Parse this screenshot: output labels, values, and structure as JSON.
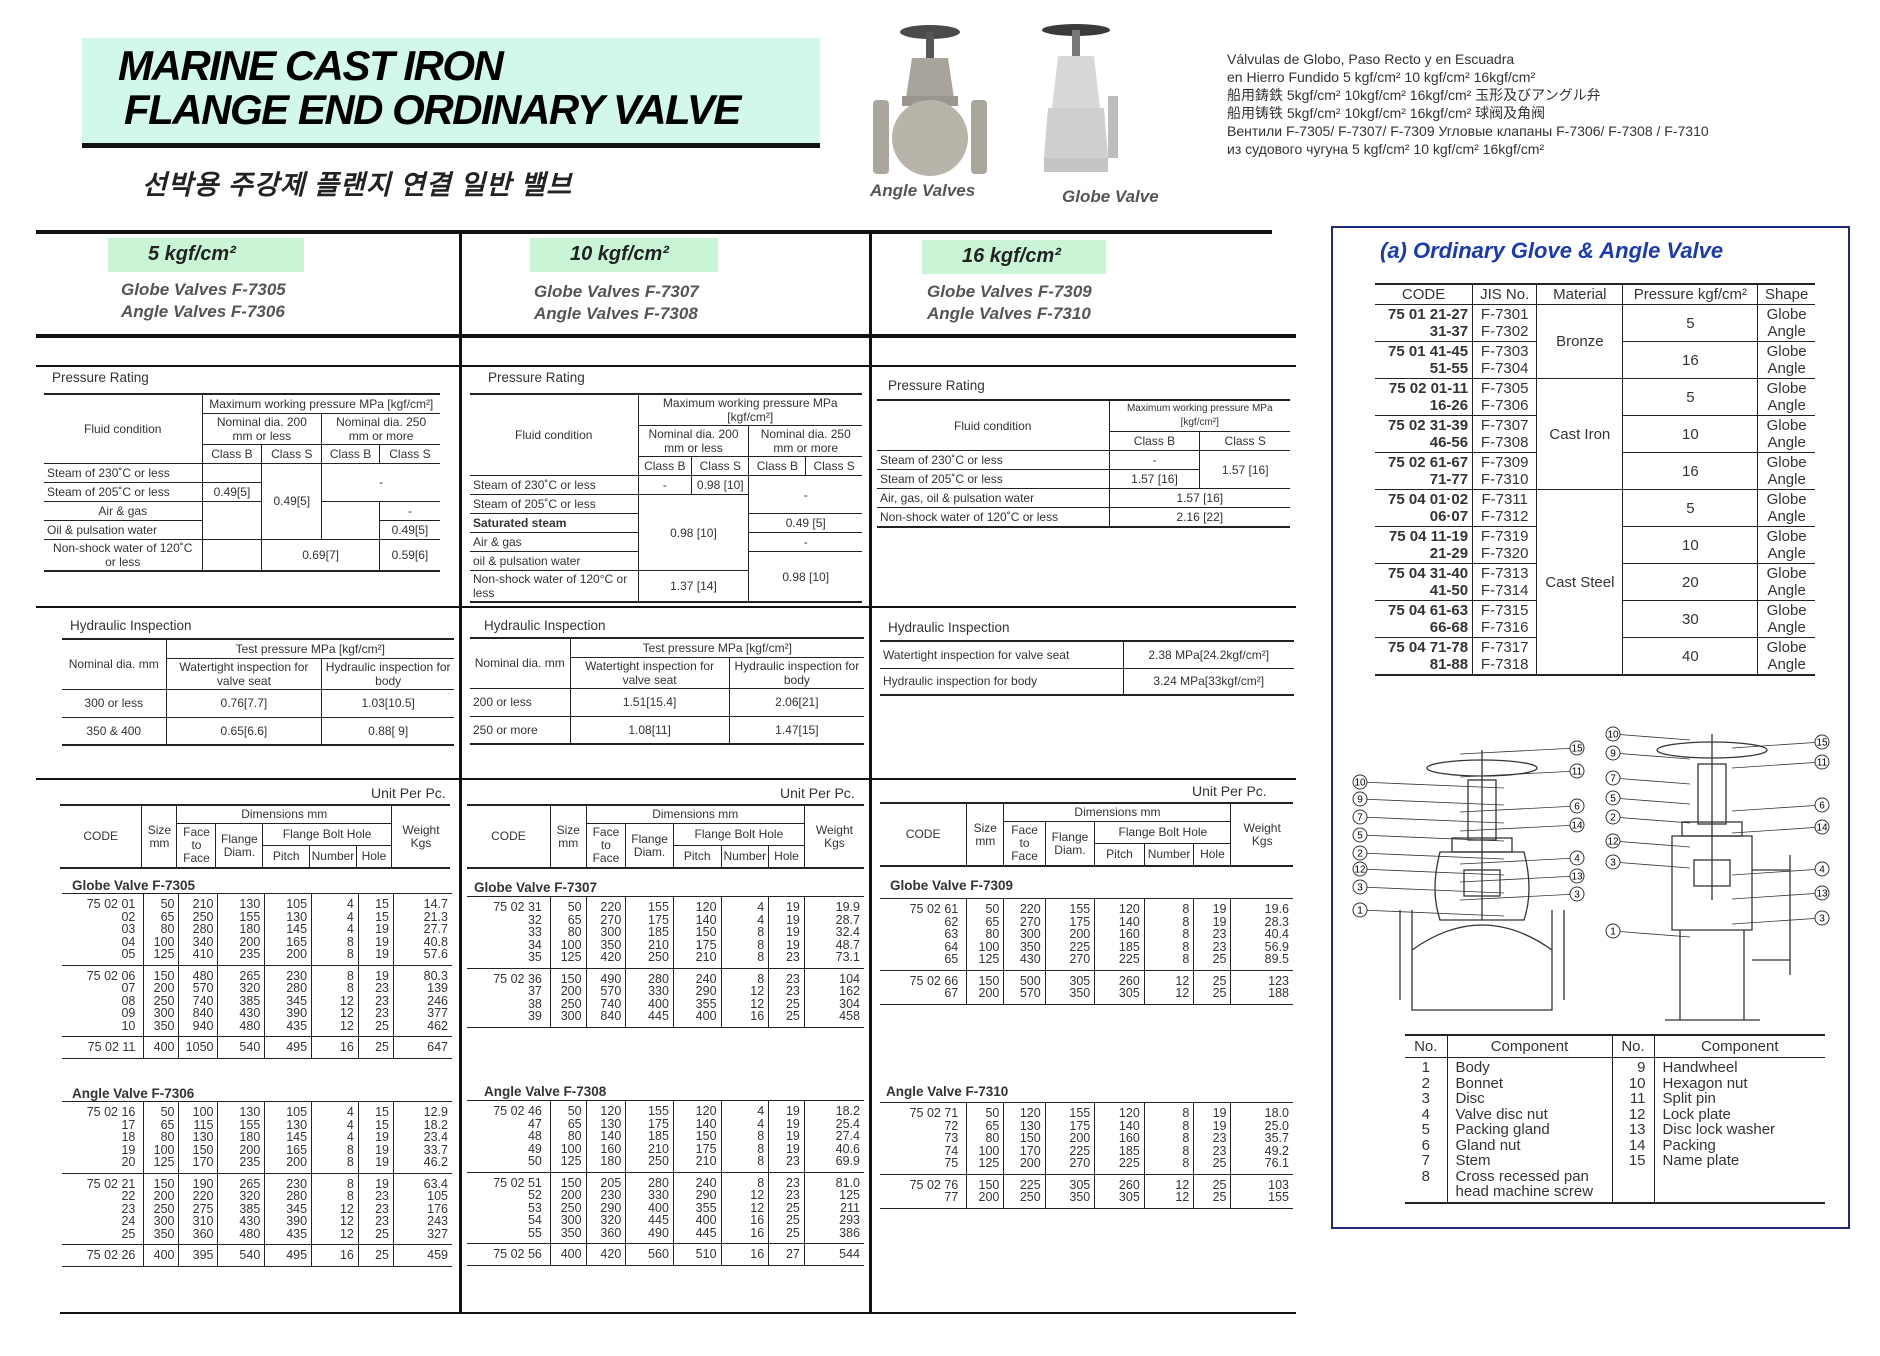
{
  "header": {
    "title_line1": "MARINE CAST IRON",
    "title_line2": "FLANGE END  ORDINARY VALVE",
    "korean": "선박용 주강제 플랜지 연결 일반 밸브",
    "photo_label_1": "Angle Valves",
    "photo_label_2": "Globe Valve",
    "multilingual": [
      "Válvulas de Globo, Paso Recto y en Escuadra",
      "en Hierro Fundido 5 kgf/cm² 10 kgf/cm² 16kgf/cm²",
      "船用鋳鉄 5kgf/cm² 10kgf/cm² 16kgf/cm² 玉形及びアングル弁",
      "船用铸铁 5kgf/cm² 10kgf/cm² 16kgf/cm² 球阀及角阀",
      "Вентили F-7305/ F-7307/ F-7309 Угловые клапаны F-7306/ F-7308 / F-7310",
      "из судового чугуна 5 kgf/cm² 10 kgf/cm² 16kgf/cm²"
    ]
  },
  "columns": [
    {
      "pressure": "5 kgf/cm²",
      "globe": "Globe Valves F-7305",
      "angle": "Angle Valves F-7306"
    },
    {
      "pressure": "10 kgf/cm²",
      "globe": "Globe Valves F-7307",
      "angle": "Angle Valves F-7308"
    },
    {
      "pressure": "16 kgf/cm²",
      "globe": "Globe Valves  F-7309",
      "angle": "Angle  Valves F-7310"
    }
  ],
  "pr": {
    "title": "Pressure Rating",
    "fluid": "Fluid condition",
    "max": "Maximum working pressure MPa [kgf/cm²]",
    "nd200": "Nominal dia. 200 mm or less",
    "nd250": "Nominal dia. 250 mm or more",
    "nd250b": "Nominal dia. 250 mm or more",
    "classb": "Class B",
    "classs": "Class S",
    "c1": {
      "r1": "Steam of 230˚C or less",
      "r2": "Steam of 205˚C or less",
      "r3": "Air & gas",
      "r4": "Oil & pulsation  water",
      "r5": "Non-shock water of 120˚C or less",
      "v_205b": "0.49[5]",
      "v_s": "0.49[5]",
      "v_big_steam": "-",
      "v_air_s": "-",
      "v_oil_s": "0.49[5]",
      "v_ns_mid": "0.69[7]",
      "v_ns_s": "0.59[6]"
    },
    "c2": {
      "r1": "Steam of 230˚C or less",
      "r2": "Steam of 205˚C or less",
      "r3": "Saturated steam",
      "r4": "Air & gas",
      "r5": "oil & pulsation water",
      "r6": "Non-shock water of 120°C or less",
      "v_230b": "-",
      "v_230s": "0.98 [10]",
      "v_big_steam": "-",
      "v_mid": "0.98 [10]",
      "v_sat": "0.49 [5]",
      "v_air": "-",
      "v_oil": "0.98 [10]",
      "v_ns": "1.37 [14]"
    },
    "c3": {
      "r1": "Steam of 230˚C or less",
      "r2": "Steam of 205˚C or less",
      "r3": "Air, gas, oil & pulsation water",
      "r4": "Non-shock water of 120˚C or less",
      "v_230b": "-",
      "v_s": "1.57 [16]",
      "v_205b": "1.57 [16]",
      "v_air": "1.57 [16]",
      "v_ns": "2.16 [22]"
    }
  },
  "hi": {
    "title": "Hydraulic Inspection",
    "nominal": "Nominal dia. mm",
    "test": "Test pressure MPa [kgf/cm²]",
    "watertight": "Watertight inspection for valve seat",
    "hydraulic": "Hydraulic inspection for body",
    "c1": [
      [
        "300 or less",
        "0.76[7.7]",
        "1.03[10.5]"
      ],
      [
        "350 & 400",
        "0.65[6.6]",
        "0.88[  9]"
      ]
    ],
    "c2": [
      [
        "200 or less",
        "1.51[15.4]",
        "2.06[21]"
      ],
      [
        "250 or more",
        "1.08[11]",
        "1.47[15]"
      ]
    ],
    "c3": [
      [
        "Watertight inspection for valve seat",
        "2.38 MPa[24.2kgf/cm²]"
      ],
      [
        "Hydraulic inspection for body",
        "3.24 MPa[33kgf/cm²]"
      ]
    ]
  },
  "dim_header": {
    "unit": "Unit Per Pc.",
    "code": "CODE",
    "size": "Size mm",
    "dimensions": "Dimensions mm",
    "ftf": "Face to Face",
    "fd": "Flange Diam.",
    "fbh": "Flange Bolt Hole",
    "pitch": "Pitch",
    "number": "Number",
    "hole": "Hole",
    "weight": "Weight Kgs"
  },
  "dims": {
    "c1g": {
      "title": "Globe Valve F-7305",
      "groups": [
        [
          [
            "75 02 01",
            "50",
            "210",
            "130",
            "105",
            "4",
            "15",
            "14.7"
          ],
          [
            "02",
            "65",
            "250",
            "155",
            "130",
            "4",
            "15",
            "21.3"
          ],
          [
            "03",
            "80",
            "280",
            "180",
            "145",
            "4",
            "19",
            "27.7"
          ],
          [
            "04",
            "100",
            "340",
            "200",
            "165",
            "8",
            "19",
            "40.8"
          ],
          [
            "05",
            "125",
            "410",
            "235",
            "200",
            "8",
            "19",
            "57.6"
          ]
        ],
        [
          [
            "75 02 06",
            "150",
            "480",
            "265",
            "230",
            "8",
            "19",
            "80.3"
          ],
          [
            "07",
            "200",
            "570",
            "320",
            "280",
            "8",
            "23",
            "139"
          ],
          [
            "08",
            "250",
            "740",
            "385",
            "345",
            "12",
            "23",
            "246"
          ],
          [
            "09",
            "300",
            "840",
            "430",
            "390",
            "12",
            "23",
            "377"
          ],
          [
            "10",
            "350",
            "940",
            "480",
            "435",
            "12",
            "25",
            "462"
          ]
        ],
        [
          [
            "75 02 11",
            "400",
            "1050",
            "540",
            "495",
            "16",
            "25",
            "647"
          ]
        ]
      ]
    },
    "c1a": {
      "title": "Angle Valve F-7306",
      "groups": [
        [
          [
            "75 02 16",
            "50",
            "100",
            "130",
            "105",
            "4",
            "15",
            "12.9"
          ],
          [
            "17",
            "65",
            "115",
            "155",
            "130",
            "4",
            "15",
            "18.2"
          ],
          [
            "18",
            "80",
            "130",
            "180",
            "145",
            "4",
            "19",
            "23.4"
          ],
          [
            "19",
            "100",
            "150",
            "200",
            "165",
            "8",
            "19",
            "33.7"
          ],
          [
            "20",
            "125",
            "170",
            "235",
            "200",
            "8",
            "19",
            "46.2"
          ]
        ],
        [
          [
            "75 02 21",
            "150",
            "190",
            "265",
            "230",
            "8",
            "19",
            "63.4"
          ],
          [
            "22",
            "200",
            "220",
            "320",
            "280",
            "8",
            "23",
            "105"
          ],
          [
            "23",
            "250",
            "275",
            "385",
            "345",
            "12",
            "23",
            "176"
          ],
          [
            "24",
            "300",
            "310",
            "430",
            "390",
            "12",
            "23",
            "243"
          ],
          [
            "25",
            "350",
            "360",
            "480",
            "435",
            "12",
            "25",
            "327"
          ]
        ],
        [
          [
            "75 02 26",
            "400",
            "395",
            "540",
            "495",
            "16",
            "25",
            "459"
          ]
        ]
      ]
    },
    "c2g": {
      "title": "Globe Valve F-7307",
      "groups": [
        [
          [
            "75 02 31",
            "50",
            "220",
            "155",
            "120",
            "4",
            "19",
            "19.9"
          ],
          [
            "32",
            "65",
            "270",
            "175",
            "140",
            "4",
            "19",
            "28.7"
          ],
          [
            "33",
            "80",
            "300",
            "185",
            "150",
            "8",
            "19",
            "32.4"
          ],
          [
            "34",
            "100",
            "350",
            "210",
            "175",
            "8",
            "19",
            "48.7"
          ],
          [
            "35",
            "125",
            "420",
            "250",
            "210",
            "8",
            "23",
            "73.1"
          ]
        ],
        [
          [
            "75 02 36",
            "150",
            "490",
            "280",
            "240",
            "8",
            "23",
            "104"
          ],
          [
            "37",
            "200",
            "570",
            "330",
            "290",
            "12",
            "23",
            "162"
          ],
          [
            "38",
            "250",
            "740",
            "400",
            "355",
            "12",
            "25",
            "304"
          ],
          [
            "39",
            "300",
            "840",
            "445",
            "400",
            "16",
            "25",
            "458"
          ]
        ]
      ]
    },
    "c2a": {
      "title": "Angle Valve F-7308",
      "groups": [
        [
          [
            "75 02 46",
            "50",
            "120",
            "155",
            "120",
            "4",
            "19",
            "18.2"
          ],
          [
            "47",
            "65",
            "130",
            "175",
            "140",
            "4",
            "19",
            "25.4"
          ],
          [
            "48",
            "80",
            "140",
            "185",
            "150",
            "8",
            "19",
            "27.4"
          ],
          [
            "49",
            "100",
            "160",
            "210",
            "175",
            "8",
            "19",
            "40.6"
          ],
          [
            "50",
            "125",
            "180",
            "250",
            "210",
            "8",
            "23",
            "69.9"
          ]
        ],
        [
          [
            "75 02 51",
            "150",
            "205",
            "280",
            "240",
            "8",
            "23",
            "81.0"
          ],
          [
            "52",
            "200",
            "230",
            "330",
            "290",
            "12",
            "23",
            "125"
          ],
          [
            "53",
            "250",
            "290",
            "400",
            "355",
            "12",
            "25",
            "211"
          ],
          [
            "54",
            "300",
            "320",
            "445",
            "400",
            "16",
            "25",
            "293"
          ],
          [
            "55",
            "350",
            "360",
            "490",
            "445",
            "16",
            "25",
            "386"
          ]
        ],
        [
          [
            "75 02 56",
            "400",
            "420",
            "560",
            "510",
            "16",
            "27",
            "544"
          ]
        ]
      ]
    },
    "c3g": {
      "title": "Globe Valve F-7309",
      "groups": [
        [
          [
            "75 02 61",
            "50",
            "220",
            "155",
            "120",
            "8",
            "19",
            "19.6"
          ],
          [
            "62",
            "65",
            "270",
            "175",
            "140",
            "8",
            "19",
            "28.3"
          ],
          [
            "63",
            "80",
            "300",
            "200",
            "160",
            "8",
            "23",
            "40.4"
          ],
          [
            "64",
            "100",
            "350",
            "225",
            "185",
            "8",
            "23",
            "56.9"
          ],
          [
            "65",
            "125",
            "430",
            "270",
            "225",
            "8",
            "25",
            "89.5"
          ]
        ],
        [
          [
            "75 02 66",
            "150",
            "500",
            "305",
            "260",
            "12",
            "25",
            "123"
          ],
          [
            "67",
            "200",
            "570",
            "350",
            "305",
            "12",
            "25",
            "188"
          ]
        ]
      ]
    },
    "c3a": {
      "title": "Angle Valve F-7310",
      "groups": [
        [
          [
            "75 02 71",
            "50",
            "120",
            "155",
            "120",
            "8",
            "19",
            "18.0"
          ],
          [
            "72",
            "65",
            "130",
            "175",
            "140",
            "8",
            "19",
            "25.0"
          ],
          [
            "73",
            "80",
            "150",
            "200",
            "160",
            "8",
            "23",
            "35.7"
          ],
          [
            "74",
            "100",
            "170",
            "225",
            "185",
            "8",
            "23",
            "49.2"
          ],
          [
            "75",
            "125",
            "200",
            "270",
            "225",
            "8",
            "25",
            "76.1"
          ]
        ],
        [
          [
            "75 02 76",
            "150",
            "225",
            "305",
            "260",
            "12",
            "25",
            "103"
          ],
          [
            "77",
            "200",
            "250",
            "350",
            "305",
            "12",
            "25",
            "155"
          ]
        ]
      ]
    }
  },
  "panel": {
    "title": "(a) Ordinary Glove & Angle Valve",
    "headers": [
      "CODE",
      "JIS No.",
      "Material",
      "Pressure kgf/cm²",
      "Shape"
    ],
    "materials": [
      {
        "name": "Bronze",
        "rows": [
          [
            "75 01 21-27",
            "31-37",
            "F-7301",
            "F-7302",
            "5"
          ],
          [
            "75 01 41-45",
            "51-55",
            "F-7303",
            "F-7304",
            "16"
          ]
        ]
      },
      {
        "name": "Cast Iron",
        "rows": [
          [
            "75 02 01-11",
            "16-26",
            "F-7305",
            "F-7306",
            "5"
          ],
          [
            "75 02 31-39",
            "46-56",
            "F-7307",
            "F-7308",
            "10"
          ],
          [
            "75 02 61-67",
            "71-77",
            "F-7309",
            "F-7310",
            "16"
          ]
        ]
      },
      {
        "name": "Cast Steel",
        "rows": [
          [
            "75 04 01·02",
            "06·07",
            "F-7311",
            "F-7312",
            "5"
          ],
          [
            "75 04 11-19",
            "21-29",
            "F-7319",
            "F-7320",
            "10"
          ],
          [
            "75 04 31-40",
            "41-50",
            "F-7313",
            "F-7314",
            "20"
          ],
          [
            "75 04 61-63",
            "66-68",
            "F-7315",
            "F-7316",
            "30"
          ],
          [
            "75 04 71-78",
            "81-88",
            "F-7317",
            "F-7318",
            "40"
          ]
        ]
      }
    ],
    "shape_globe": "Globe",
    "shape_angle": "Angle",
    "diagram_left_callouts": [
      "10",
      "9",
      "7",
      "5",
      "2",
      "12",
      "3",
      "1"
    ],
    "diagram_right_callouts": [
      "15",
      "11",
      "6",
      "14",
      "4",
      "13",
      "3"
    ],
    "diagram2_left_callouts": [
      "10",
      "9",
      "7",
      "5",
      "2",
      "12",
      "3",
      "1"
    ],
    "diagram2_right_callouts": [
      "15",
      "11",
      "6",
      "14",
      "4",
      "13",
      "3"
    ],
    "comp_headers": [
      "No.",
      "Component",
      "No.",
      "Component"
    ],
    "comp_left": [
      [
        "1",
        "Body"
      ],
      [
        "2",
        "Bonnet"
      ],
      [
        "3",
        "Disc"
      ],
      [
        "4",
        "Valve disc nut"
      ],
      [
        "5",
        "Packing gland"
      ],
      [
        "6",
        "Gland nut"
      ],
      [
        "7",
        "Stem"
      ],
      [
        "8",
        "Cross recessed pan head machine screw"
      ]
    ],
    "comp_right": [
      [
        "9",
        "Handwheel"
      ],
      [
        "10",
        "Hexagon nut"
      ],
      [
        "11",
        "Split pin"
      ],
      [
        "12",
        "Lock plate"
      ],
      [
        "13",
        "Disc lock washer"
      ],
      [
        "14",
        "Packing"
      ],
      [
        "15",
        "Name plate"
      ]
    ]
  },
  "colors": {
    "title_bg": "#d2f8ea",
    "kgf_bg": "#c9f5d6",
    "panel_border": "#1f2a7a",
    "panel_title": "#1a3bb0"
  }
}
